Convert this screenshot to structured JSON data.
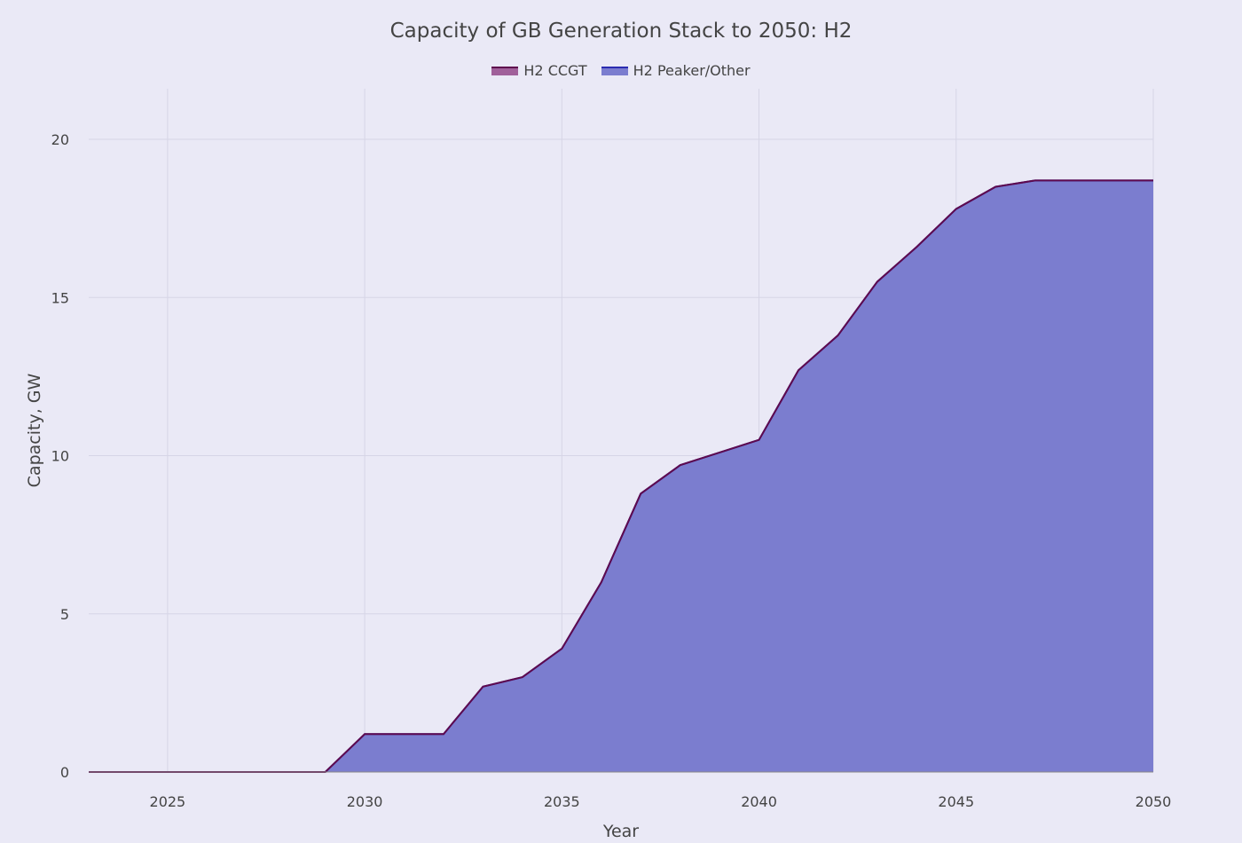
{
  "chart_data": {
    "type": "area",
    "stacked": true,
    "title": "Capacity of GB Generation Stack to 2050: H2",
    "xlabel": "Year",
    "ylabel": "Capacity, GW",
    "xlim": [
      2023,
      2050
    ],
    "ylim": [
      0,
      21.6
    ],
    "xticks": [
      2025,
      2030,
      2035,
      2040,
      2045,
      2050
    ],
    "yticks": [
      0,
      5,
      10,
      15,
      20
    ],
    "grid": true,
    "legend_placement": "top-center",
    "x": [
      2023,
      2024,
      2025,
      2026,
      2027,
      2028,
      2029,
      2030,
      2031,
      2032,
      2033,
      2034,
      2035,
      2036,
      2037,
      2038,
      2039,
      2040,
      2041,
      2042,
      2043,
      2044,
      2045,
      2046,
      2047,
      2048,
      2049,
      2050
    ],
    "series": [
      {
        "name": "H2 Peaker/Other",
        "color": "#7b7dcf",
        "line_color": "#2b2bb0",
        "values": [
          0,
          0,
          0,
          0,
          0,
          0,
          0,
          1.2,
          1.2,
          1.2,
          2.7,
          3.0,
          3.9,
          6.0,
          8.8,
          9.7,
          10.1,
          10.5,
          12.7,
          13.8,
          15.5,
          16.6,
          17.8,
          18.5,
          18.7,
          18.7,
          18.7,
          18.7
        ]
      },
      {
        "name": "H2 CCGT",
        "color": "#a0609a",
        "line_color": "#5e0a4e",
        "values": [
          0,
          0,
          0,
          0,
          0,
          0,
          0,
          0,
          0,
          0,
          0,
          0,
          0,
          0,
          0,
          0,
          0,
          0,
          0,
          0,
          0,
          0,
          0,
          0,
          0,
          0,
          0,
          0
        ]
      }
    ]
  }
}
